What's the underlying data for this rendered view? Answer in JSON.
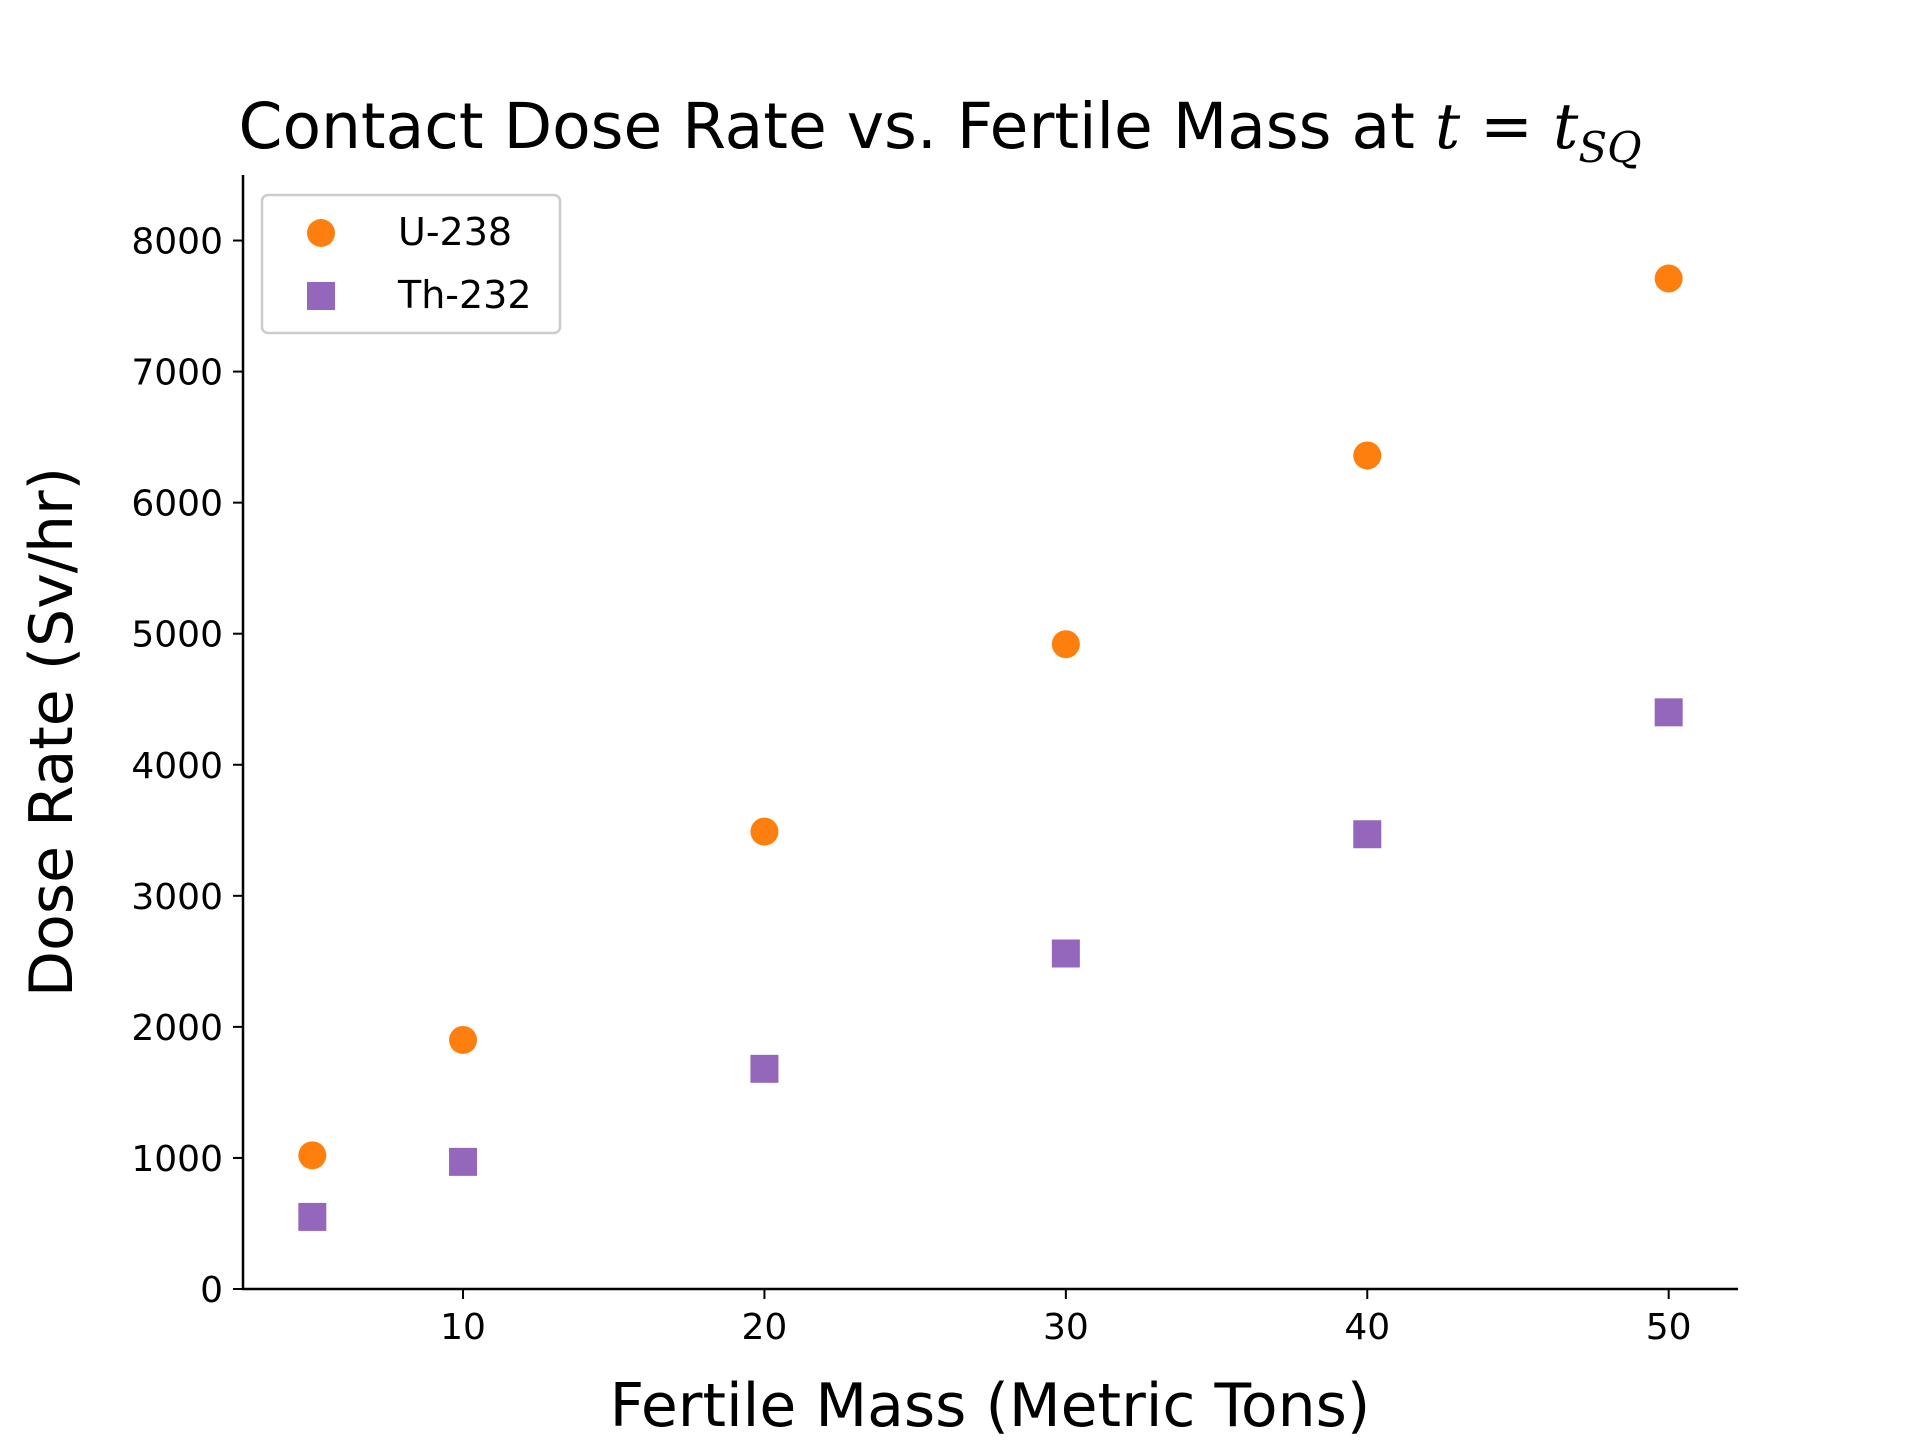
{
  "chart_data": {
    "type": "scatter",
    "title": "Contact Dose Rate vs. Fertile Mass at ",
    "title_math": {
      "lhs": "t",
      "op": " = ",
      "rhs": "t",
      "rhs_subscript": "SQ"
    },
    "xlabel": "Fertile Mass (Metric Tons)",
    "ylabel": "Dose Rate (Sv/hr)",
    "xlim": [
      2.7,
      52.3
    ],
    "ylim": [
      0,
      8500
    ],
    "xticks": [
      10,
      20,
      30,
      40,
      50
    ],
    "xtick_labels": [
      "10",
      "20",
      "30",
      "40",
      "50"
    ],
    "yticks": [
      0,
      1000,
      2000,
      3000,
      4000,
      5000,
      6000,
      7000,
      8000
    ],
    "ytick_labels": [
      "0",
      "1000",
      "2000",
      "3000",
      "4000",
      "5000",
      "6000",
      "7000",
      "8000"
    ],
    "grid": false,
    "legend_position": "upper-left",
    "series": [
      {
        "name": "U-238",
        "marker": "circle",
        "color": "#ff7f0e",
        "x": [
          5,
          10,
          20,
          30,
          40,
          50
        ],
        "y": [
          1020,
          1900,
          3490,
          4920,
          6360,
          7710
        ]
      },
      {
        "name": "Th-232",
        "marker": "square",
        "color": "#9467bd",
        "x": [
          5,
          10,
          20,
          30,
          40,
          50
        ],
        "y": [
          550,
          970,
          1680,
          2560,
          3470,
          4400
        ]
      }
    ]
  }
}
